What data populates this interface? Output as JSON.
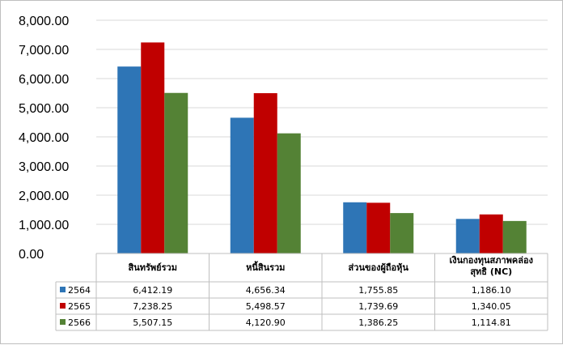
{
  "chart_data": {
    "type": "bar",
    "categories": [
      "สินทรัพย์รวม",
      "หนี้สินรวม",
      "ส่วนของผู้ถือหุ้น",
      [
        "เงินกองทุนสภาพคล่อง",
        "สุทธิ (NC)"
      ]
    ],
    "series": [
      {
        "name": "2564",
        "color": "#2e75b6",
        "values": [
          6412.19,
          4656.34,
          1755.85,
          1186.1
        ],
        "labels": [
          "6,412.19",
          "4,656.34",
          "1,755.85",
          "1,186.10"
        ]
      },
      {
        "name": "2565",
        "color": "#c00000",
        "values": [
          7238.25,
          5498.57,
          1739.69,
          1340.05
        ],
        "labels": [
          "7,238.25",
          "5,498.57",
          "1,739.69",
          "1,340.05"
        ]
      },
      {
        "name": "2566",
        "color": "#548235",
        "values": [
          5507.15,
          4120.9,
          1386.25,
          1114.81
        ],
        "labels": [
          "5,507.15",
          "4,120.90",
          "1,386.25",
          "1,114.81"
        ]
      }
    ],
    "ylim": [
      0,
      8000
    ],
    "yticks": [
      "0.00",
      "1,000.00",
      "2,000.00",
      "3,000.00",
      "4,000.00",
      "5,000.00",
      "6,000.00",
      "7,000.00",
      "8,000.00"
    ],
    "grid": true,
    "legend": "data-table"
  }
}
